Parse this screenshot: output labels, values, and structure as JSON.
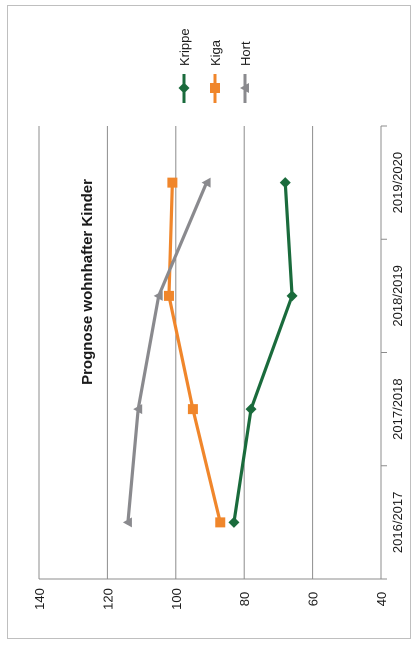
{
  "chart_data": {
    "type": "line",
    "title": "Prognose wohnhafter Kinder",
    "categories": [
      "2016/2017",
      "2017/2018",
      "2018/2019",
      "2019/2020"
    ],
    "series": [
      {
        "name": "Krippe",
        "values": [
          83,
          78,
          66,
          68
        ],
        "color": "#1a6b3c",
        "marker": "diamond"
      },
      {
        "name": "Kiga",
        "values": [
          87,
          95,
          102,
          101
        ],
        "color": "#f0862b",
        "marker": "square"
      },
      {
        "name": "Hort",
        "values": [
          114,
          111,
          105,
          91
        ],
        "color": "#8a8a8e",
        "marker": "triangle"
      }
    ],
    "value_axis": {
      "min": 40,
      "max": 140,
      "ticks": [
        "40",
        "60",
        "80",
        "100",
        "120",
        "140"
      ],
      "reversed": true
    },
    "grid": true,
    "legend_position": "top",
    "orientation": "rotated 90° clockwise"
  }
}
